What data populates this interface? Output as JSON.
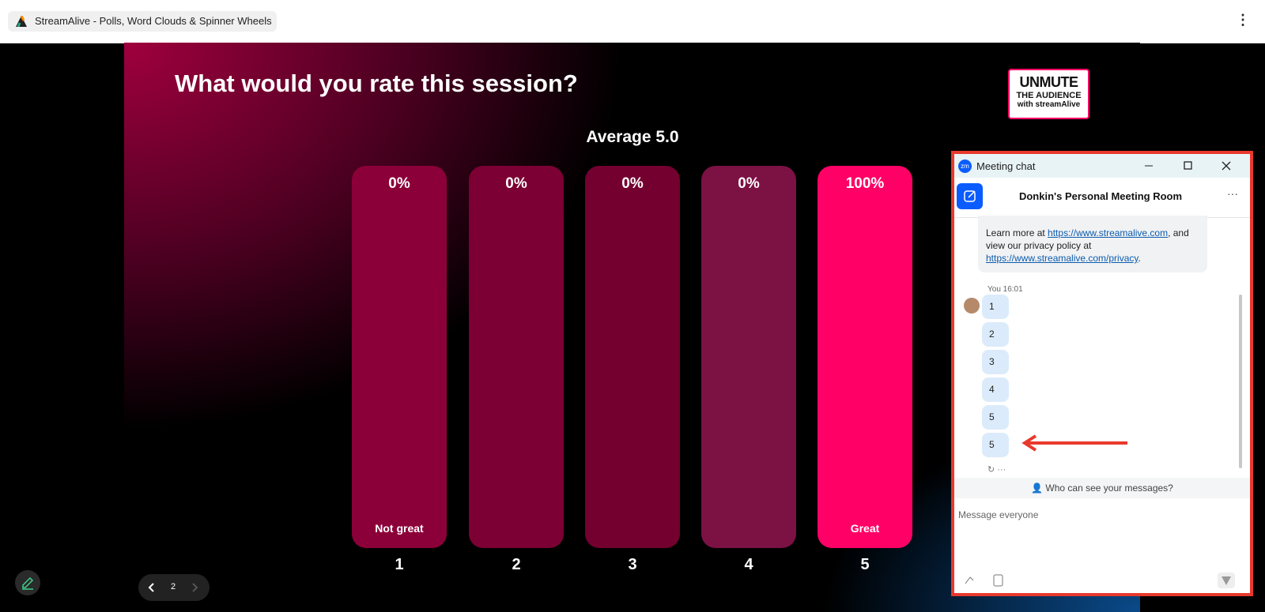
{
  "tab": {
    "title": "StreamAlive - Polls, Word Clouds & Spinner Wheels"
  },
  "slide": {
    "question": "What would you rate this session?",
    "average": "Average 5.0",
    "logo": {
      "line1": "UNMUTE",
      "line2": "THE AUDIENCE",
      "line3": "with streamAlive"
    },
    "options": [
      {
        "percent": "0%",
        "label": "1",
        "caption": "Not great"
      },
      {
        "percent": "0%",
        "label": "2"
      },
      {
        "percent": "0%",
        "label": "3"
      },
      {
        "percent": "0%",
        "label": "4"
      },
      {
        "percent": "100%",
        "label": "5",
        "caption": "Great"
      }
    ],
    "page": "2"
  },
  "chat": {
    "app_icon": "zm",
    "window_title": "Meeting chat",
    "room": "Donkin's Personal Meeting Room",
    "info": {
      "text1": "Learn more at ",
      "link1": "https://www.streamalive.com",
      "text2": ", and view our privacy policy at ",
      "link2": "https://www.streamalive.com/privacy",
      "text3": "."
    },
    "sender": "You",
    "time": "16:01",
    "messages": [
      "1",
      "2",
      "3",
      "4",
      "5",
      "5"
    ],
    "privacy": "Who can see your messages?",
    "placeholder": "Message everyone"
  }
}
